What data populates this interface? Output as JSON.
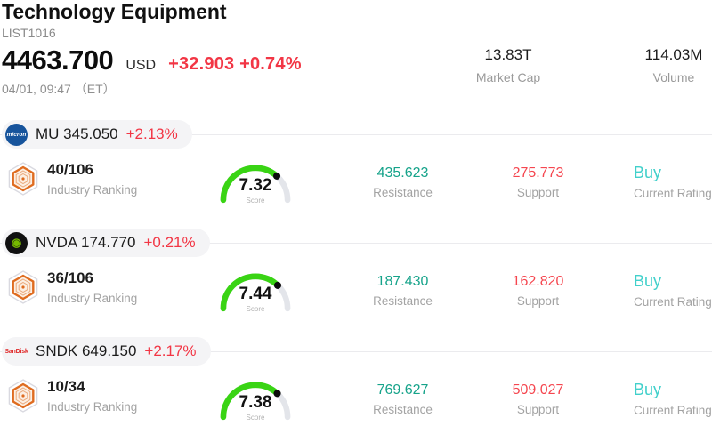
{
  "header": {
    "title": "Technology Equipment",
    "list_id": "LIST1016",
    "price": "4463.700",
    "currency": "USD",
    "change": "+32.903 +0.74%",
    "timestamp": "04/01, 09:47 （ET）",
    "stats": [
      {
        "value": "13.83T",
        "label": "Market Cap"
      },
      {
        "value": "114.03M",
        "label": "Volume"
      }
    ]
  },
  "labels": {
    "industry_ranking": "Industry Ranking",
    "score": "Score",
    "resistance": "Resistance",
    "support": "Support",
    "current_rating": "Current Rating"
  },
  "colors": {
    "change_red": "#f23645",
    "support_red": "#f5464f",
    "resistance_green": "#16a38a",
    "buy_cyan": "#41d0cb",
    "gauge_green": "#39d414",
    "gauge_track": "#e3e5ea",
    "pill_bg": "#f4f4f6",
    "badge_orange": "#df6c20"
  },
  "stocks": [
    {
      "ticker": "MU",
      "price": "345.050",
      "change": "+2.13%",
      "logo": {
        "name": "micron-logo",
        "text": "micron",
        "bg": "#17549c",
        "fg": "#ffffff"
      },
      "ranking": "40/106",
      "score": 7.32,
      "resistance": "435.623",
      "support": "275.773",
      "rating": "Buy"
    },
    {
      "ticker": "NVDA",
      "price": "174.770",
      "change": "+0.21%",
      "logo": {
        "name": "nvidia-logo",
        "text": "◉",
        "bg": "#111111",
        "fg": "#76b900"
      },
      "ranking": "36/106",
      "score": 7.44,
      "resistance": "187.430",
      "support": "162.820",
      "rating": "Buy"
    },
    {
      "ticker": "SNDK",
      "price": "649.150",
      "change": "+2.17%",
      "logo": {
        "name": "sandisk-logo",
        "text": "SanDisk",
        "bg": "transparent",
        "fg": "#e02a2a"
      },
      "ranking": "10/34",
      "score": 7.38,
      "resistance": "769.627",
      "support": "509.027",
      "rating": "Buy"
    }
  ]
}
